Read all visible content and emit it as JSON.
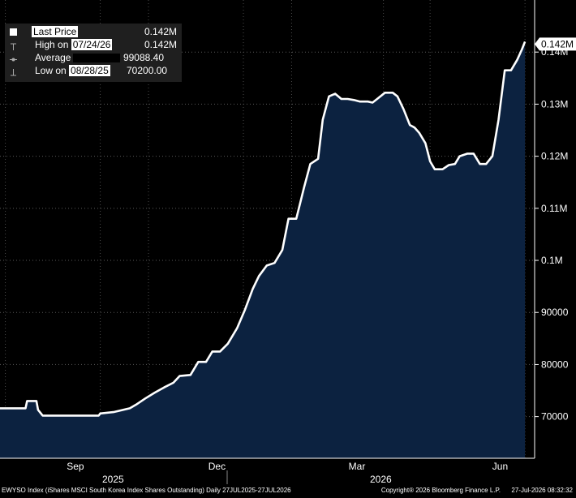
{
  "chart_data": {
    "type": "area",
    "ticker_description": "EWYSO Index (iShares MSCI South Korea Index Shares Outstanding) Daily 27JUL2025-27JUL2026",
    "copyright": "Copyright® 2026 Bloomberg Finance L.P.",
    "timestamp": "27-Jul-2026 08:32:32",
    "x_labels": [
      "Sep",
      "Dec",
      "Mar",
      "Jun"
    ],
    "year_labels": [
      "2025",
      "2026"
    ],
    "y_ticks": [
      "70000",
      "80000",
      "90000",
      "0.1M",
      "0.11M",
      "0.12M",
      "0.13M",
      "0.14M"
    ],
    "ylim": [
      62000,
      150000
    ],
    "last_value_label": "0.142M",
    "legend": {
      "last_price": {
        "label": "Last Price",
        "value": "0.142M"
      },
      "high": {
        "label_prefix": "High on ",
        "date": "07/24/26",
        "value": "0.142M"
      },
      "average": {
        "label": "Average",
        "value": "99088.40"
      },
      "low": {
        "label_prefix": "Low on ",
        "date": "08/28/25",
        "value": "70200.00"
      }
    },
    "series": [
      {
        "points": [
          [
            "2025-07-27",
            71600
          ],
          [
            "2025-08-14",
            71600
          ],
          [
            "2025-08-15",
            73000
          ],
          [
            "2025-08-21",
            73000
          ],
          [
            "2025-08-22",
            71300
          ],
          [
            "2025-08-25",
            70200
          ],
          [
            "2025-08-28",
            70200
          ],
          [
            "2025-09-30",
            70200
          ],
          [
            "2025-10-01",
            70600
          ],
          [
            "2025-10-10",
            70900
          ],
          [
            "2025-10-20",
            71600
          ],
          [
            "2025-10-24",
            72300
          ],
          [
            "2025-10-30",
            73500
          ],
          [
            "2025-11-05",
            74600
          ],
          [
            "2025-11-11",
            75600
          ],
          [
            "2025-11-17",
            76500
          ],
          [
            "2025-11-21",
            77800
          ],
          [
            "2025-11-28",
            78000
          ],
          [
            "2025-12-03",
            80500
          ],
          [
            "2025-12-08",
            80500
          ],
          [
            "2025-12-12",
            82500
          ],
          [
            "2025-12-17",
            82500
          ],
          [
            "2025-12-22",
            84000
          ],
          [
            "2025-12-28",
            87000
          ],
          [
            "2026-01-02",
            90500
          ],
          [
            "2026-01-07",
            94500
          ],
          [
            "2026-01-11",
            97000
          ],
          [
            "2026-01-16",
            99000
          ],
          [
            "2026-01-21",
            99500
          ],
          [
            "2026-01-26",
            102000
          ],
          [
            "2026-01-30",
            108000
          ],
          [
            "2026-02-04",
            108000
          ],
          [
            "2026-02-09",
            114000
          ],
          [
            "2026-02-13",
            118500
          ],
          [
            "2026-02-18",
            119500
          ],
          [
            "2026-02-21",
            127000
          ],
          [
            "2026-02-25",
            131500
          ],
          [
            "2026-03-01",
            132000
          ],
          [
            "2026-03-05",
            131000
          ],
          [
            "2026-03-09",
            131000
          ],
          [
            "2026-03-13",
            130800
          ],
          [
            "2026-03-17",
            130500
          ],
          [
            "2026-03-22",
            130500
          ],
          [
            "2026-03-25",
            130300
          ],
          [
            "2026-03-28",
            131000
          ],
          [
            "2026-04-02",
            132200
          ],
          [
            "2026-04-07",
            132200
          ],
          [
            "2026-04-10",
            131500
          ],
          [
            "2026-04-14",
            129000
          ],
          [
            "2026-04-18",
            126000
          ],
          [
            "2026-04-21",
            125500
          ],
          [
            "2026-04-24",
            124500
          ],
          [
            "2026-04-28",
            122500
          ],
          [
            "2026-05-01",
            119000
          ],
          [
            "2026-05-04",
            117500
          ],
          [
            "2026-05-09",
            117500
          ],
          [
            "2026-05-13",
            118300
          ],
          [
            "2026-05-17",
            118500
          ],
          [
            "2026-05-20",
            120000
          ],
          [
            "2026-05-25",
            120500
          ],
          [
            "2026-05-29",
            120500
          ],
          [
            "2026-06-02",
            118500
          ],
          [
            "2026-06-06",
            118500
          ],
          [
            "2026-06-10",
            120000
          ],
          [
            "2026-06-14",
            127000
          ],
          [
            "2026-06-18",
            136500
          ],
          [
            "2026-06-22",
            136500
          ],
          [
            "2026-06-26",
            138500
          ],
          [
            "2026-06-29",
            140500
          ],
          [
            "2026-07-01",
            142000
          ]
        ]
      }
    ]
  }
}
